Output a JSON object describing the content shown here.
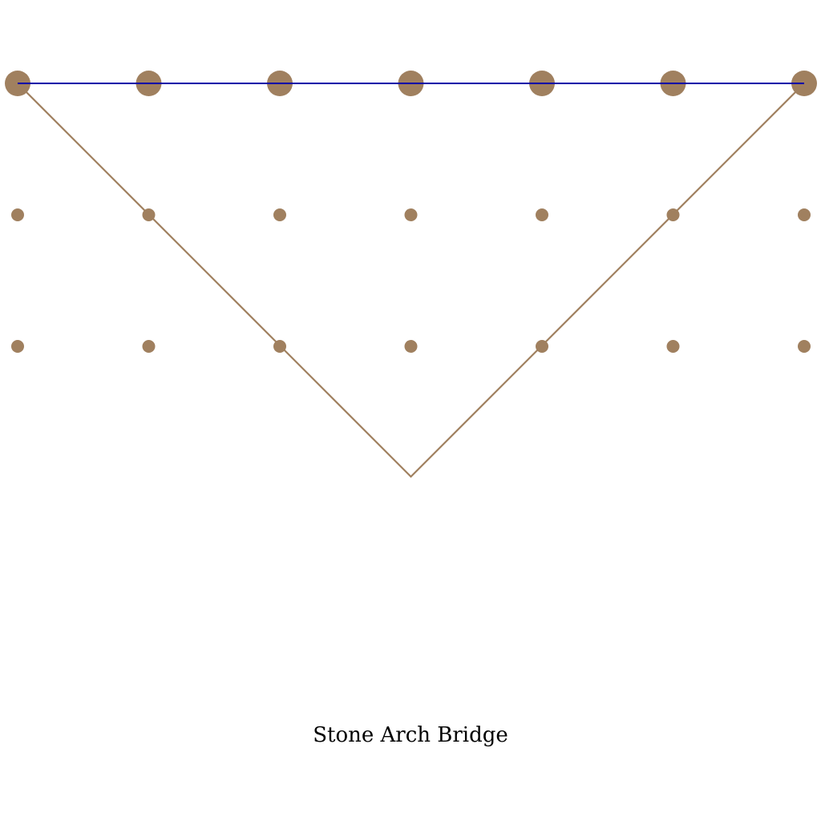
{
  "diagram": {
    "caption": "Stone Arch Bridge",
    "colors": {
      "stone": "#a0805f",
      "deck": "#0000a8",
      "background": "#ffffff"
    },
    "grid": {
      "columns": 7,
      "rows": 3
    },
    "arch": {
      "shape": "inverted-triangle",
      "vertex_column": 3
    }
  }
}
